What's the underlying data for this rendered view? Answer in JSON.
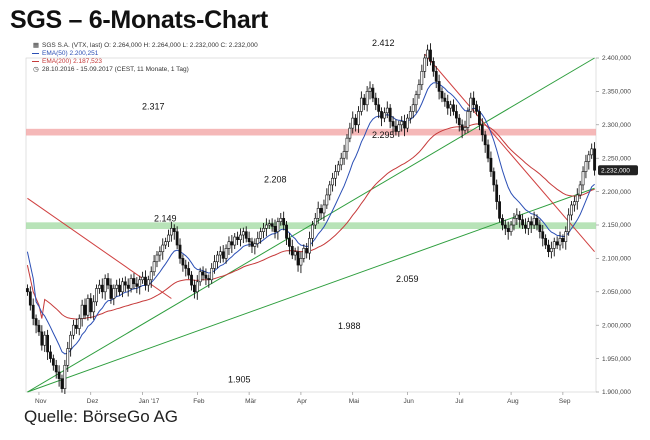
{
  "title": "SGS – 6-Monats-Chart",
  "legend": {
    "ohlc": "SGS S.A. (VTX, last)  O: 2.264,000  H: 2.264,000  L: 2.232,000  C: 2.232,000",
    "ema50": "EMA(50)  2.200,251",
    "ema200": "EMA(200)  2.187,523",
    "period": "28.10.2016 - 15.09.2017  (CEST, 11 Monate, 1 Tag)"
  },
  "source": "Quelle: BörseGo AG",
  "colors": {
    "ema50": "#2b4fb5",
    "ema200": "#c63a3a",
    "trend_green": "#2e9e3e",
    "trend_red": "#d04040",
    "resistance_zone": "#f3a6a6",
    "support_zone": "#a6dca6",
    "candle": "#111111",
    "current_badge": "#222222"
  },
  "chart_data": {
    "type": "candlestick",
    "y_axis": {
      "min": 1900,
      "max": 2400,
      "ticks": [
        "1.900,000",
        "1.950,000",
        "2.000,000",
        "2.050,000",
        "2.100,000",
        "2.150,000",
        "2.200,000",
        "2.250,000",
        "2.300,000",
        "2.350,000",
        "2.400,000"
      ],
      "position": "right"
    },
    "x_axis": {
      "ticks": [
        "Nov",
        "Dez",
        "Jan '17",
        "Feb",
        "Mär",
        "Apr",
        "Mai",
        "Jun",
        "Jul",
        "Aug",
        "Sep"
      ]
    },
    "current_price_label": "2.232,000",
    "price_levels": [
      {
        "label": "2.412",
        "value": 2412
      },
      {
        "label": "2.317",
        "value": 2317
      },
      {
        "label": "2.295",
        "value": 2295
      },
      {
        "label": "2.208",
        "value": 2208
      },
      {
        "label": "2.149",
        "value": 2149
      },
      {
        "label": "2.059",
        "value": 2059
      },
      {
        "label": "1.988",
        "value": 1988
      },
      {
        "label": "1.905",
        "value": 1905
      }
    ],
    "zones": [
      {
        "name": "resistance",
        "from": 2284,
        "to": 2294
      },
      {
        "name": "support",
        "from": 2144,
        "to": 2154
      }
    ],
    "closes": [
      2050,
      2030,
      2010,
      2000,
      1990,
      1970,
      1985,
      1960,
      1950,
      1940,
      1930,
      1920,
      1905,
      1940,
      1965,
      1985,
      2000,
      1995,
      2010,
      2030,
      2015,
      2040,
      2020,
      2035,
      2055,
      2060,
      2050,
      2070,
      2060,
      2040,
      2055,
      2060,
      2050,
      2065,
      2060,
      2055,
      2070,
      2062,
      2058,
      2068,
      2072,
      2060,
      2068,
      2080,
      2095,
      2105,
      2110,
      2120,
      2125,
      2135,
      2145,
      2140,
      2120,
      2100,
      2090,
      2085,
      2075,
      2060,
      2050,
      2065,
      2080,
      2075,
      2070,
      2068,
      2085,
      2095,
      2105,
      2110,
      2100,
      2115,
      2125,
      2120,
      2132,
      2128,
      2135,
      2140,
      2130,
      2125,
      2118,
      2122,
      2130,
      2140,
      2145,
      2150,
      2152,
      2148,
      2140,
      2155,
      2160,
      2150,
      2130,
      2118,
      2105,
      2110,
      2090,
      2100,
      2115,
      2108,
      2130,
      2150,
      2160,
      2175,
      2168,
      2180,
      2195,
      2210,
      2220,
      2230,
      2240,
      2250,
      2260,
      2280,
      2295,
      2310,
      2300,
      2320,
      2340,
      2330,
      2350,
      2355,
      2340,
      2330,
      2320,
      2310,
      2318,
      2325,
      2305,
      2298,
      2290,
      2300,
      2305,
      2295,
      2310,
      2320,
      2330,
      2345,
      2360,
      2380,
      2400,
      2412,
      2395,
      2380,
      2365,
      2350,
      2340,
      2335,
      2325,
      2330,
      2320,
      2310,
      2300,
      2292,
      2296,
      2320,
      2340,
      2330,
      2320,
      2300,
      2285,
      2270,
      2250,
      2230,
      2210,
      2185,
      2160,
      2150,
      2145,
      2140,
      2150,
      2160,
      2165,
      2158,
      2150,
      2145,
      2155,
      2150,
      2160,
      2150,
      2140,
      2130,
      2120,
      2110,
      2115,
      2125,
      2120,
      2130,
      2125,
      2140,
      2165,
      2180,
      2185,
      2195,
      2210,
      2230,
      2245,
      2255,
      2264,
      2232
    ]
  }
}
